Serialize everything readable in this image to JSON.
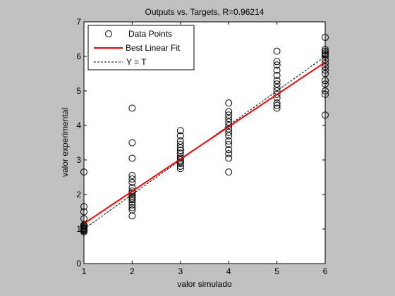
{
  "chart_data": {
    "type": "scatter",
    "title": "Outputs vs. Targets, R=0.96214",
    "xlabel": "valor simulado",
    "ylabel": "valor experimental",
    "xlim": [
      1,
      6
    ],
    "ylim": [
      0,
      7
    ],
    "xticks": [
      "1",
      "2",
      "3",
      "4",
      "5",
      "6"
    ],
    "yticks": [
      "0",
      "1",
      "2",
      "3",
      "4",
      "5",
      "6",
      "7"
    ],
    "grid": false,
    "legend_position": "top-left",
    "colors": {
      "background": "#c0c0c0",
      "axes": "#ffffff",
      "fit_line": "#ff0000",
      "points": "#000000",
      "ideal_line": "#000000"
    },
    "series": [
      {
        "name": "Data Points",
        "marker": "circle-open",
        "points": [
          [
            1,
            0.92
          ],
          [
            1,
            0.95
          ],
          [
            1,
            0.98
          ],
          [
            1,
            1.0
          ],
          [
            1,
            1.02
          ],
          [
            1,
            1.05
          ],
          [
            1,
            1.08
          ],
          [
            1,
            1.1
          ],
          [
            1,
            1.12
          ],
          [
            1,
            1.3
          ],
          [
            1,
            1.5
          ],
          [
            1,
            1.65
          ],
          [
            1,
            2.65
          ],
          [
            2,
            1.38
          ],
          [
            2,
            1.55
          ],
          [
            2,
            1.62
          ],
          [
            2,
            1.7
          ],
          [
            2,
            1.78
          ],
          [
            2,
            1.85
          ],
          [
            2,
            1.9
          ],
          [
            2,
            1.95
          ],
          [
            2,
            2.0
          ],
          [
            2,
            2.05
          ],
          [
            2,
            2.1
          ],
          [
            2,
            2.2
          ],
          [
            2,
            2.35
          ],
          [
            2,
            2.45
          ],
          [
            2,
            2.55
          ],
          [
            2,
            3.05
          ],
          [
            2,
            3.5
          ],
          [
            2,
            4.5
          ],
          [
            3,
            2.75
          ],
          [
            3,
            2.82
          ],
          [
            3,
            2.9
          ],
          [
            3,
            2.95
          ],
          [
            3,
            3.0
          ],
          [
            3,
            3.05
          ],
          [
            3,
            3.1
          ],
          [
            3,
            3.2
          ],
          [
            3,
            3.28
          ],
          [
            3,
            3.35
          ],
          [
            3,
            3.45
          ],
          [
            3,
            3.55
          ],
          [
            3,
            3.7
          ],
          [
            3,
            3.85
          ],
          [
            4,
            2.65
          ],
          [
            4,
            3.05
          ],
          [
            4,
            3.18
          ],
          [
            4,
            3.3
          ],
          [
            4,
            3.45
          ],
          [
            4,
            3.55
          ],
          [
            4,
            3.7
          ],
          [
            4,
            3.8
          ],
          [
            4,
            3.9
          ],
          [
            4,
            4.0
          ],
          [
            4,
            4.1
          ],
          [
            4,
            4.2
          ],
          [
            4,
            4.3
          ],
          [
            4,
            4.4
          ],
          [
            4,
            4.65
          ],
          [
            5,
            4.5
          ],
          [
            5,
            4.58
          ],
          [
            5,
            4.65
          ],
          [
            5,
            4.8
          ],
          [
            5,
            4.9
          ],
          [
            5,
            5.0
          ],
          [
            5,
            5.1
          ],
          [
            5,
            5.2
          ],
          [
            5,
            5.3
          ],
          [
            5,
            5.45
          ],
          [
            5,
            5.6
          ],
          [
            5,
            5.75
          ],
          [
            5,
            5.85
          ],
          [
            5,
            6.15
          ],
          [
            6,
            4.3
          ],
          [
            6,
            4.9
          ],
          [
            6,
            5.0
          ],
          [
            6,
            5.2
          ],
          [
            6,
            5.3
          ],
          [
            6,
            5.5
          ],
          [
            6,
            5.6
          ],
          [
            6,
            5.7
          ],
          [
            6,
            5.8
          ],
          [
            6,
            5.9
          ],
          [
            6,
            6.0
          ],
          [
            6,
            6.05
          ],
          [
            6,
            6.1
          ],
          [
            6,
            6.15
          ],
          [
            6,
            6.2
          ],
          [
            6,
            6.55
          ]
        ]
      },
      {
        "name": "Best Linear Fit",
        "style": "solid-red",
        "x": [
          1,
          6
        ],
        "y": [
          1.16,
          5.83
        ]
      },
      {
        "name": "Y = T",
        "style": "dashed-black",
        "x": [
          1,
          6
        ],
        "y": [
          1,
          6
        ]
      }
    ]
  }
}
